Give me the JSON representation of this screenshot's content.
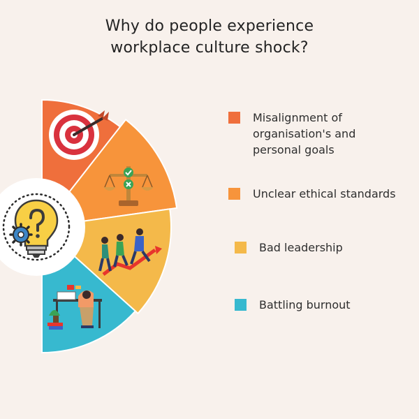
{
  "title": {
    "line1": "Why do people experience",
    "line2": "workplace culture shock?"
  },
  "colors": {
    "background": "#f8f1ec",
    "segment_1": "#ef6f3c",
    "segment_2": "#f7943b",
    "segment_3": "#f4b94a",
    "segment_4": "#37b9cf"
  },
  "segments": [
    {
      "label": "Misalignment of\norganisation's and\npersonal goals",
      "color": "#ef6f3c",
      "icon": "target-arrow-icon"
    },
    {
      "label": "Unclear ethical standards",
      "color": "#f7943b",
      "icon": "balance-scale-icon"
    },
    {
      "label": "Bad leadership",
      "color": "#f4b94a",
      "icon": "running-team-icon"
    },
    {
      "label": "Battling burnout",
      "color": "#37b9cf",
      "icon": "tired-worker-desk-icon"
    }
  ],
  "center_icon": "lightbulb-question-gear-icon"
}
